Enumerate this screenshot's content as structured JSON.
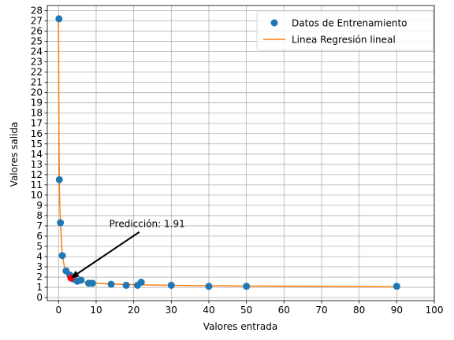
{
  "chart_data": {
    "type": "scatter",
    "xlabel": "Valores entrada",
    "ylabel": "Valores salida",
    "xlim": [
      -3,
      100
    ],
    "ylim": [
      -0.3,
      28.5
    ],
    "xticks": [
      0,
      10,
      20,
      30,
      40,
      50,
      60,
      70,
      80,
      90,
      100
    ],
    "yticks": [
      0,
      1,
      2,
      3,
      4,
      5,
      6,
      7,
      8,
      9,
      10,
      11,
      12,
      13,
      14,
      15,
      16,
      17,
      18,
      19,
      20,
      21,
      22,
      23,
      24,
      25,
      26,
      27,
      28
    ],
    "grid": true,
    "legend_position": "top-right",
    "series": [
      {
        "name": "Datos de Entrenamiento",
        "kind": "points",
        "color": "#1f77b4",
        "x": [
          0.1,
          0.2,
          0.5,
          1,
          2,
          3,
          4,
          5,
          6,
          8,
          9,
          14,
          18,
          21,
          22,
          30,
          40,
          50,
          90
        ],
        "y": [
          27.2,
          11.5,
          7.3,
          4.1,
          2.6,
          2.2,
          1.8,
          1.6,
          1.7,
          1.4,
          1.4,
          1.3,
          1.2,
          1.2,
          1.5,
          1.2,
          1.1,
          1.1,
          1.1
        ]
      },
      {
        "name": "Linea Regresión lineal",
        "kind": "line",
        "color": "#ff7f0e",
        "x": [
          0,
          0.1,
          0.2,
          0.3,
          0.5,
          0.8,
          1,
          1.5,
          2,
          3,
          4,
          5,
          6,
          8,
          10,
          14,
          18,
          22,
          30,
          40,
          50,
          70,
          90
        ],
        "y": [
          27.2,
          16,
          11.5,
          9.3,
          7.3,
          5.2,
          4.2,
          3.1,
          2.6,
          2.1,
          1.8,
          1.65,
          1.55,
          1.45,
          1.4,
          1.32,
          1.28,
          1.25,
          1.2,
          1.16,
          1.13,
          1.09,
          1.05
        ]
      }
    ],
    "prediction": {
      "x": 3.3,
      "y": 1.91,
      "color": "#ff0000"
    },
    "annotation": {
      "text": "Predicción: 1.91",
      "text_x": 13.5,
      "text_y": 6.9,
      "arrow_from_x": 21.5,
      "arrow_from_y": 6.4,
      "arrow_to_x": 3.3,
      "arrow_to_y": 1.91
    }
  }
}
